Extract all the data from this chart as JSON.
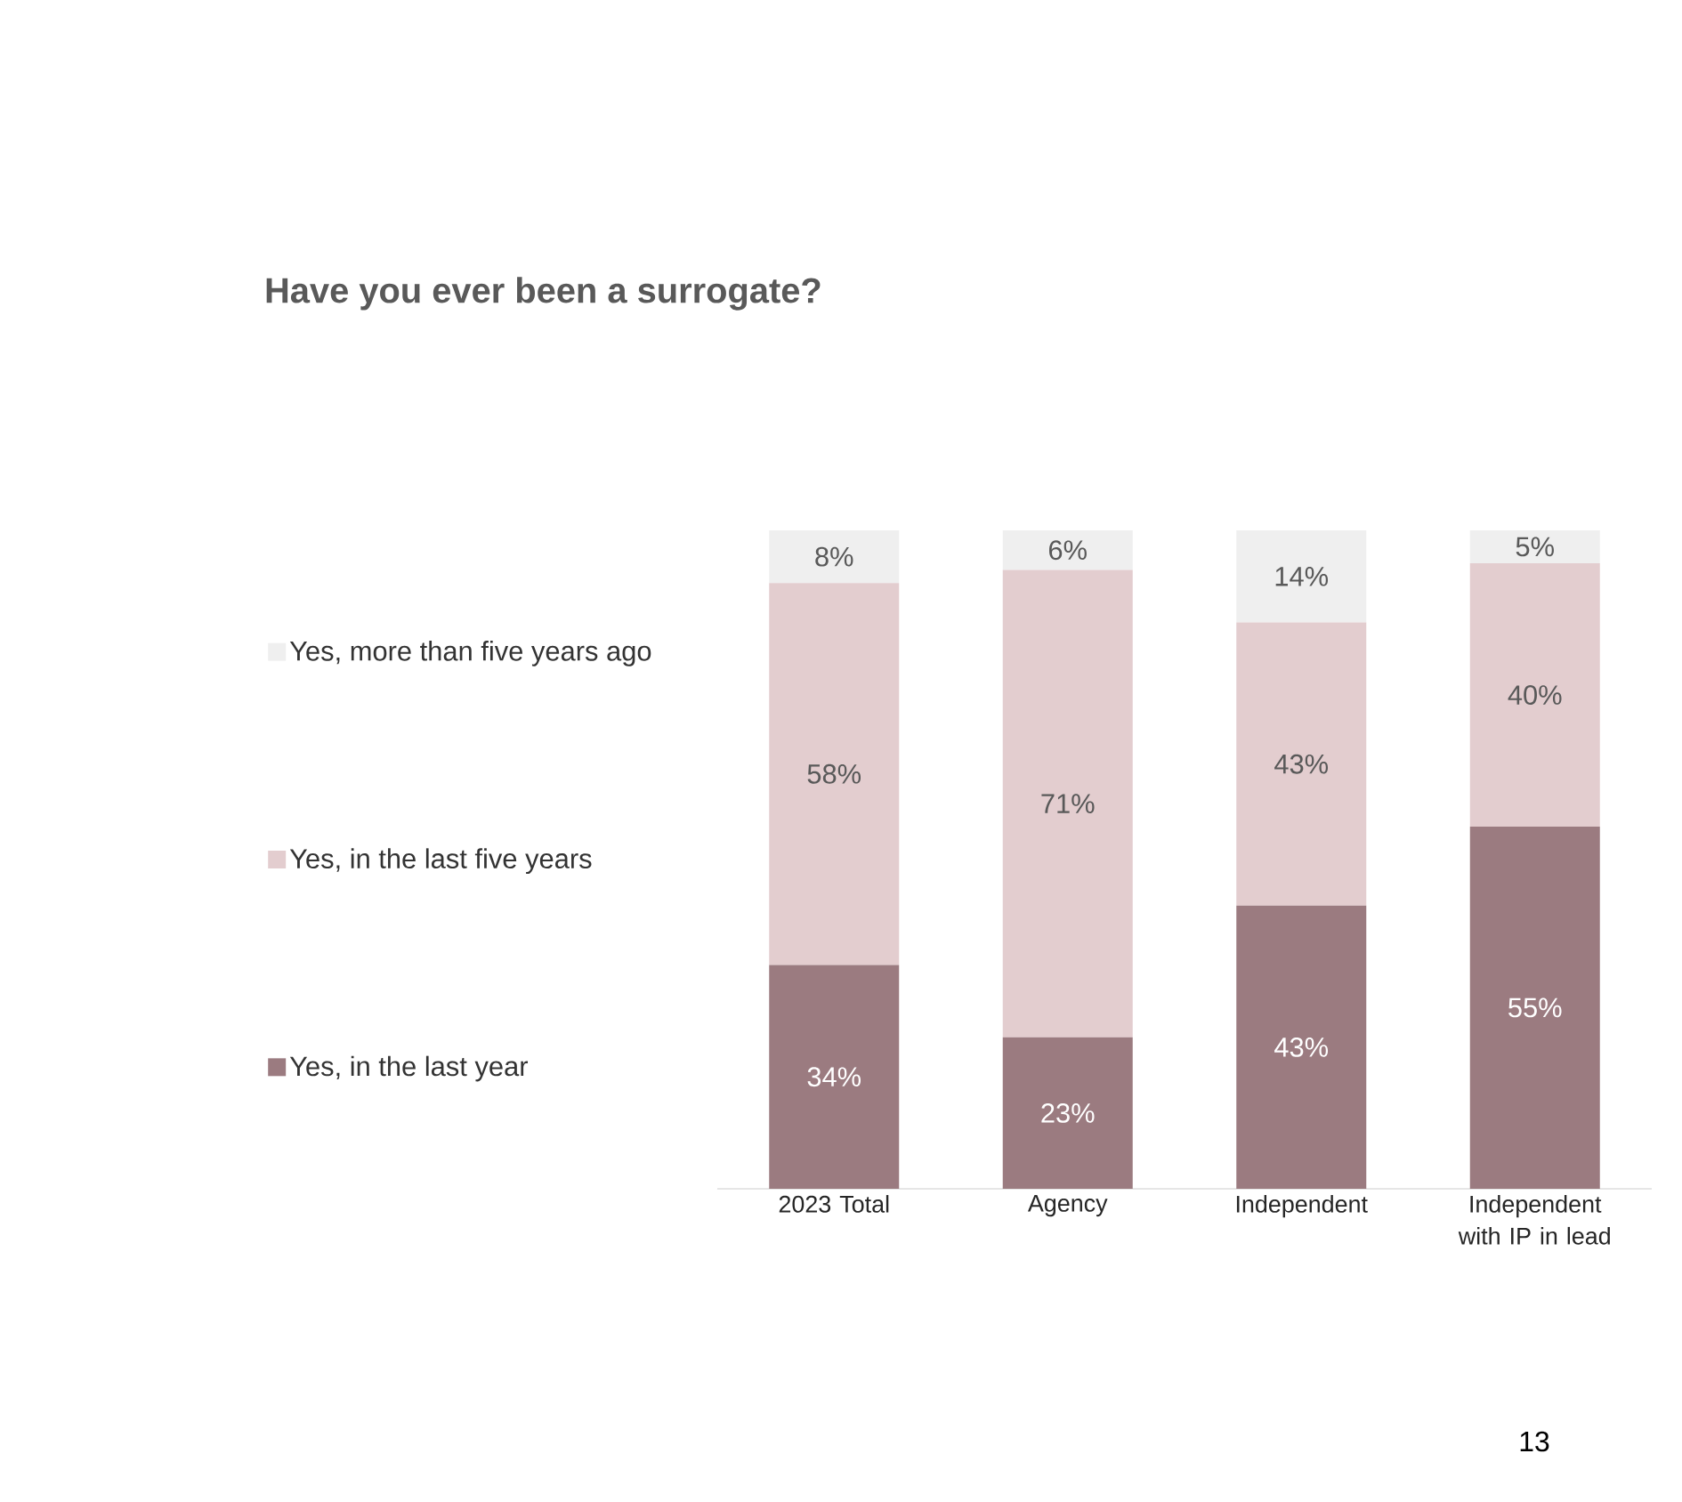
{
  "chart_data": {
    "type": "bar",
    "stacked": true,
    "title": "Have you ever been a surrogate?",
    "categories": [
      "2023 Total",
      "Agency",
      "Independent",
      "Independent with IP in lead"
    ],
    "series": [
      {
        "name": "Yes, in the last year",
        "color": "#9b7b80",
        "values": [
          34,
          23,
          43,
          55
        ],
        "value_labels": [
          "34%",
          "23%",
          "43%",
          "55%"
        ]
      },
      {
        "name": "Yes, in the last five years",
        "color": "#e3cdcf",
        "values": [
          58,
          71,
          43,
          40
        ],
        "value_labels": [
          "58%",
          "71%",
          "43%",
          "40%"
        ]
      },
      {
        "name": "Yes, more than five years ago",
        "color": "#efefef",
        "values": [
          8,
          6,
          14,
          5
        ],
        "value_labels": [
          "8%",
          "6%",
          "14%",
          "5%"
        ]
      }
    ],
    "legend": "left",
    "annotations": [
      "13"
    ]
  }
}
